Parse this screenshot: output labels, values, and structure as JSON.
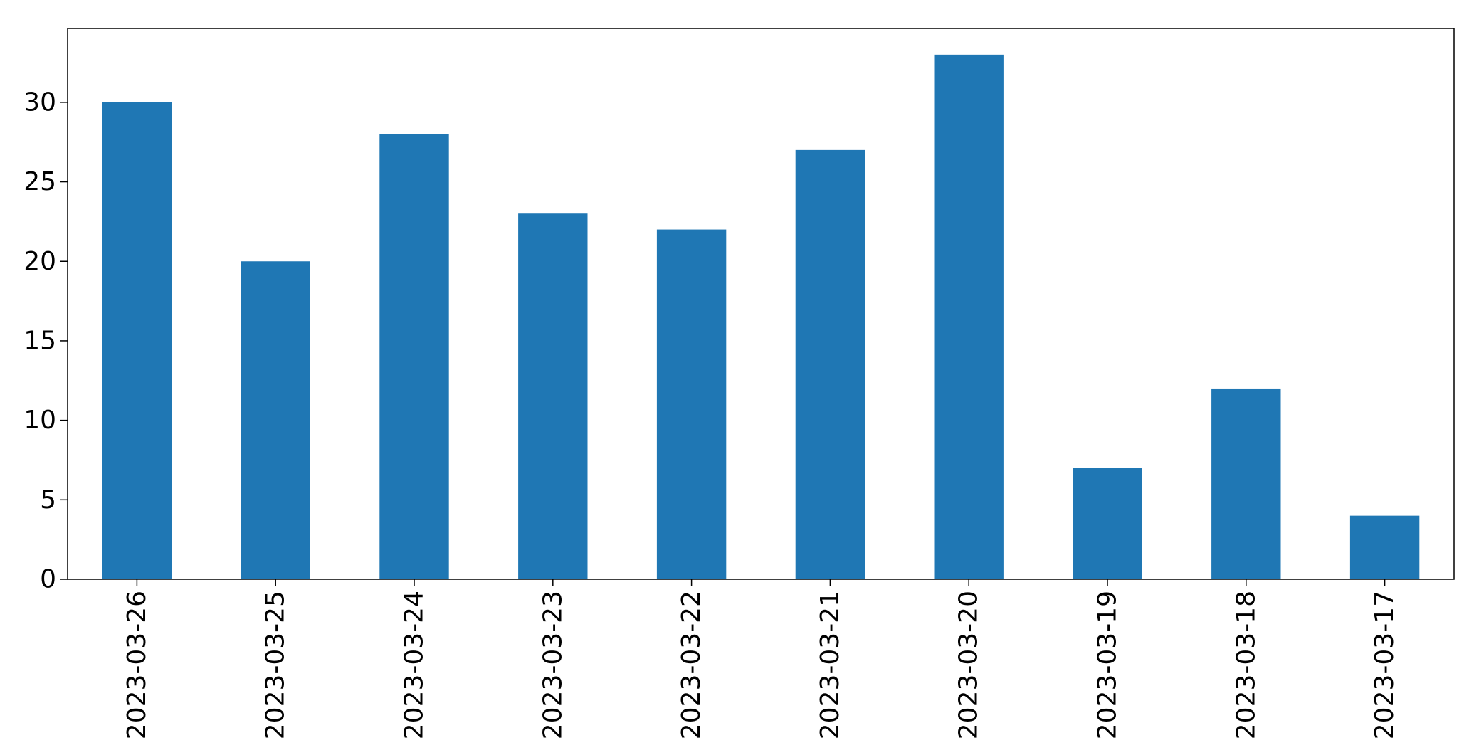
{
  "chart_data": {
    "type": "bar",
    "categories": [
      "2023-03-26",
      "2023-03-25",
      "2023-03-24",
      "2023-03-23",
      "2023-03-22",
      "2023-03-21",
      "2023-03-20",
      "2023-03-19",
      "2023-03-18",
      "2023-03-17"
    ],
    "series": [
      {
        "values": [
          30,
          20,
          28,
          23,
          22,
          27,
          33,
          7,
          12,
          4
        ]
      }
    ],
    "title": "",
    "xlabel": "",
    "ylabel": "",
    "ylim": [
      0,
      34.65
    ],
    "yticks": [
      0,
      5,
      10,
      15,
      20,
      25,
      30
    ],
    "grid": false,
    "legend": false,
    "bar_color": "#1f77b4",
    "axis_color": "#000000",
    "x_tick_rotation": "vertical"
  }
}
